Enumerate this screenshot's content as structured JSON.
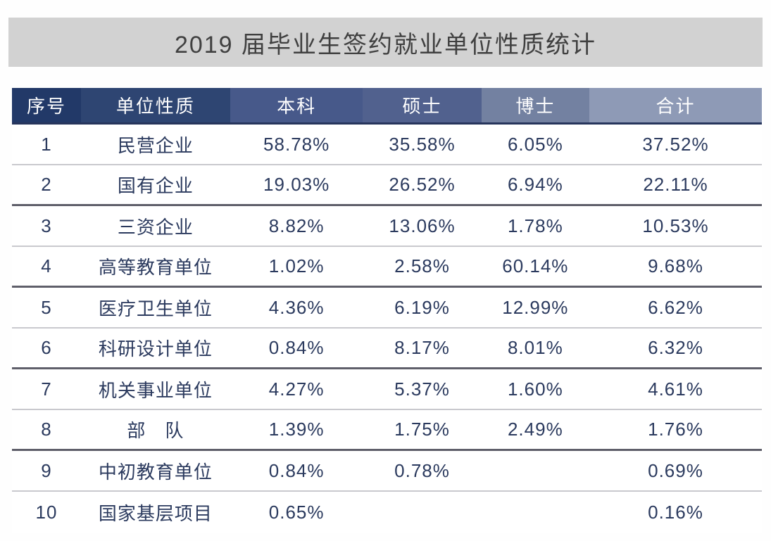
{
  "banner": {
    "title": "2019 届毕业生签约就业单位性质统计"
  },
  "colors": {
    "banner_bg": "#d2d2d2",
    "banner_text": "#404040",
    "header_cell_colors": [
      "#223968",
      "#2e4572",
      "#47598a",
      "#51618e",
      "#7381a1",
      "#8e9ab6"
    ],
    "header_text": "#ffffff",
    "body_text": "#2b3a5e",
    "thin_divider": "#c9c9ce",
    "thick_divider": "#5f5f6a"
  },
  "table": {
    "headers": [
      "序号",
      "单位性质",
      "本科",
      "硕士",
      "博士",
      "合计"
    ],
    "rows": [
      {
        "no": "1",
        "unit": "民营企业",
        "bachelor": "58.78%",
        "master": "35.58%",
        "doctor": "6.05%",
        "total": "37.52%"
      },
      {
        "no": "2",
        "unit": "国有企业",
        "bachelor": "19.03%",
        "master": "26.52%",
        "doctor": "6.94%",
        "total": "22.11%"
      },
      {
        "no": "3",
        "unit": "三资企业",
        "bachelor": "8.82%",
        "master": "13.06%",
        "doctor": "1.78%",
        "total": "10.53%"
      },
      {
        "no": "4",
        "unit": "高等教育单位",
        "bachelor": "1.02%",
        "master": "2.58%",
        "doctor": "60.14%",
        "total": "9.68%"
      },
      {
        "no": "5",
        "unit": "医疗卫生单位",
        "bachelor": "4.36%",
        "master": "6.19%",
        "doctor": "12.99%",
        "total": "6.62%"
      },
      {
        "no": "6",
        "unit": "科研设计单位",
        "bachelor": "0.84%",
        "master": "8.17%",
        "doctor": "8.01%",
        "total": "6.32%"
      },
      {
        "no": "7",
        "unit": "机关事业单位",
        "bachelor": "4.27%",
        "master": "5.37%",
        "doctor": "1.60%",
        "total": "4.61%"
      },
      {
        "no": "8",
        "unit": "部　队",
        "bachelor": "1.39%",
        "master": "1.75%",
        "doctor": "2.49%",
        "total": "1.76%"
      },
      {
        "no": "9",
        "unit": "中初教育单位",
        "bachelor": "0.84%",
        "master": "0.78%",
        "doctor": "",
        "total": "0.69%"
      },
      {
        "no": "10",
        "unit": "国家基层项目",
        "bachelor": "0.65%",
        "master": "",
        "doctor": "",
        "total": "0.16%"
      }
    ]
  },
  "chart_data": {
    "type": "table",
    "title": "2019 届毕业生签约就业单位性质统计",
    "columns": [
      "序号",
      "单位性质",
      "本科",
      "硕士",
      "博士",
      "合计"
    ],
    "rows": [
      [
        "1",
        "民营企业",
        "58.78%",
        "35.58%",
        "6.05%",
        "37.52%"
      ],
      [
        "2",
        "国有企业",
        "19.03%",
        "26.52%",
        "6.94%",
        "22.11%"
      ],
      [
        "3",
        "三资企业",
        "8.82%",
        "13.06%",
        "1.78%",
        "10.53%"
      ],
      [
        "4",
        "高等教育单位",
        "1.02%",
        "2.58%",
        "60.14%",
        "9.68%"
      ],
      [
        "5",
        "医疗卫生单位",
        "4.36%",
        "6.19%",
        "12.99%",
        "6.62%"
      ],
      [
        "6",
        "科研设计单位",
        "0.84%",
        "8.17%",
        "8.01%",
        "6.32%"
      ],
      [
        "7",
        "机关事业单位",
        "4.27%",
        "5.37%",
        "1.60%",
        "4.61%"
      ],
      [
        "8",
        "部　队",
        "1.39%",
        "1.75%",
        "2.49%",
        "1.76%"
      ],
      [
        "9",
        "中初教育单位",
        "0.84%",
        "0.78%",
        "",
        "0.69%"
      ],
      [
        "10",
        "国家基层项目",
        "0.65%",
        "",
        "",
        "0.16%"
      ]
    ]
  }
}
